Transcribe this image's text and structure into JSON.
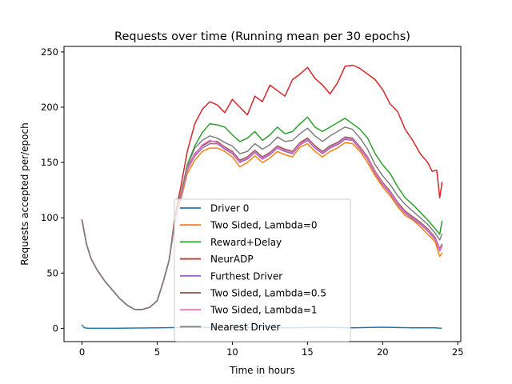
{
  "chart_data": {
    "type": "line",
    "title": "Requests over time (Running mean per 30 epochs)",
    "xlabel": "Time in hours",
    "ylabel": "Requests accepted per/epoch",
    "xlim": [
      -1.2,
      25.2
    ],
    "ylim": [
      -12,
      255
    ],
    "xticks": [
      0,
      5,
      10,
      15,
      20,
      25
    ],
    "yticks": [
      0,
      50,
      100,
      150,
      200,
      250
    ],
    "grid": false,
    "legend_position": "lower-center",
    "shared_early": {
      "x": [
        0,
        0.3,
        0.6,
        1.0,
        1.5,
        2.0,
        2.5,
        3.0,
        3.5,
        4.0,
        4.5,
        5.0,
        5.4,
        5.8
      ],
      "y": [
        98,
        76,
        63,
        53,
        43,
        35,
        27,
        21,
        17,
        17,
        19,
        25,
        42,
        62
      ]
    },
    "series": [
      {
        "name": "Driver 0",
        "color": "#1f77b4",
        "x": [
          0,
          0.15,
          0.5,
          2,
          5,
          8,
          10,
          12,
          14,
          16,
          18,
          20,
          22,
          23.5,
          23.9
        ],
        "y": [
          3,
          0.5,
          0,
          0,
          0.5,
          1,
          0.5,
          1,
          0.5,
          1,
          0.5,
          1,
          0.5,
          0.5,
          0
        ]
      },
      {
        "name": "Two Sided, Lambda=0",
        "color": "#ff7f0e",
        "x": [
          5.8,
          6.2,
          6.6,
          7.0,
          7.5,
          8.0,
          8.5,
          9.0,
          9.5,
          10.0,
          10.5,
          11.0,
          11.5,
          12.0,
          12.5,
          13.0,
          13.5,
          14.0,
          14.5,
          15.0,
          15.5,
          16.0,
          16.5,
          17.0,
          17.5,
          18.0,
          18.5,
          19.0,
          19.5,
          20.0,
          20.5,
          21.0,
          21.5,
          22.0,
          22.5,
          23.0,
          23.5,
          23.8,
          23.95
        ],
        "y": [
          62,
          98,
          118,
          140,
          152,
          160,
          163,
          163,
          160,
          155,
          146,
          150,
          156,
          150,
          154,
          160,
          157,
          155,
          164,
          167,
          160,
          155,
          160,
          163,
          168,
          167,
          160,
          150,
          138,
          128,
          120,
          110,
          102,
          98,
          92,
          85,
          78,
          65,
          68
        ]
      },
      {
        "name": "Reward+Delay",
        "color": "#2ca02c",
        "x": [
          5.8,
          6.2,
          6.6,
          7.0,
          7.5,
          8.0,
          8.5,
          9.0,
          9.5,
          10.0,
          10.5,
          11.0,
          11.5,
          12.0,
          12.5,
          13.0,
          13.5,
          14.0,
          14.5,
          15.0,
          15.5,
          16.0,
          16.5,
          17.0,
          17.5,
          18.0,
          18.5,
          19.0,
          19.5,
          20.0,
          20.5,
          21.0,
          21.5,
          22.0,
          22.5,
          23.0,
          23.5,
          23.8,
          23.95
        ],
        "y": [
          62,
          100,
          122,
          148,
          165,
          177,
          185,
          184,
          182,
          175,
          169,
          172,
          178,
          170,
          175,
          182,
          176,
          178,
          185,
          191,
          182,
          178,
          182,
          186,
          190,
          185,
          180,
          172,
          158,
          148,
          140,
          128,
          118,
          112,
          105,
          98,
          90,
          85,
          97
        ]
      },
      {
        "name": "NeurADP",
        "color": "#d62728",
        "x": [
          5.8,
          6.2,
          6.6,
          7.0,
          7.5,
          8.0,
          8.5,
          9.0,
          9.5,
          10.0,
          10.5,
          11.0,
          11.5,
          12.0,
          12.5,
          13.0,
          13.5,
          14.0,
          14.5,
          15.0,
          15.5,
          16.0,
          16.5,
          17.0,
          17.5,
          18.0,
          18.5,
          19.0,
          19.5,
          20.0,
          20.5,
          21.0,
          21.5,
          22.0,
          22.5,
          23.0,
          23.3,
          23.6,
          23.8,
          23.95
        ],
        "y": [
          62,
          103,
          130,
          160,
          185,
          198,
          205,
          202,
          195,
          207,
          200,
          193,
          210,
          205,
          220,
          215,
          210,
          225,
          230,
          236,
          226,
          220,
          212,
          222,
          237,
          238,
          235,
          230,
          225,
          216,
          203,
          196,
          180,
          170,
          158,
          150,
          142,
          143,
          118,
          132
        ]
      },
      {
        "name": "Furthest Driver",
        "color": "#9467bd",
        "x": [
          5.8,
          6.2,
          6.6,
          7.0,
          7.5,
          8.0,
          8.5,
          9.0,
          9.5,
          10.0,
          10.5,
          11.0,
          11.5,
          12.0,
          12.5,
          13.0,
          13.5,
          14.0,
          14.5,
          15.0,
          15.5,
          16.0,
          16.5,
          17.0,
          17.5,
          18.0,
          18.5,
          19.0,
          19.5,
          20.0,
          20.5,
          21.0,
          21.5,
          22.0,
          22.5,
          23.0,
          23.5,
          23.8,
          23.95
        ],
        "y": [
          62,
          99,
          120,
          143,
          156,
          163,
          167,
          167,
          162,
          158,
          150,
          153,
          159,
          153,
          157,
          163,
          160,
          158,
          166,
          170,
          163,
          158,
          163,
          166,
          171,
          170,
          162,
          153,
          140,
          130,
          122,
          112,
          104,
          99,
          94,
          88,
          80,
          70,
          74
        ]
      },
      {
        "name": "Two Sided, Lambda=0.5",
        "color": "#8c564b",
        "x": [
          5.8,
          6.2,
          6.6,
          7.0,
          7.5,
          8.0,
          8.5,
          9.0,
          9.5,
          10.0,
          10.5,
          11.0,
          11.5,
          12.0,
          12.5,
          13.0,
          13.5,
          14.0,
          14.5,
          15.0,
          15.5,
          16.0,
          16.5,
          17.0,
          17.5,
          18.0,
          18.5,
          19.0,
          19.5,
          20.0,
          20.5,
          21.0,
          21.5,
          22.0,
          22.5,
          23.0,
          23.5,
          23.8,
          23.95
        ],
        "y": [
          62,
          99,
          121,
          145,
          158,
          165,
          169,
          169,
          164,
          160,
          152,
          155,
          161,
          155,
          159,
          165,
          162,
          160,
          168,
          172,
          165,
          160,
          165,
          168,
          173,
          172,
          164,
          155,
          142,
          132,
          124,
          114,
          106,
          101,
          96,
          90,
          82,
          72,
          76
        ]
      },
      {
        "name": "Two Sided, Lambda=1",
        "color": "#e377c2",
        "x": [
          5.8,
          6.2,
          6.6,
          7.0,
          7.5,
          8.0,
          8.5,
          9.0,
          9.5,
          10.0,
          10.5,
          11.0,
          11.5,
          12.0,
          12.5,
          13.0,
          13.5,
          14.0,
          14.5,
          15.0,
          15.5,
          16.0,
          16.5,
          17.0,
          17.5,
          18.0,
          18.5,
          19.0,
          19.5,
          20.0,
          20.5,
          21.0,
          21.5,
          22.0,
          22.5,
          23.0,
          23.5,
          23.8,
          23.95
        ],
        "y": [
          62,
          99,
          121,
          144,
          157,
          166,
          170,
          168,
          163,
          159,
          151,
          154,
          160,
          154,
          158,
          164,
          161,
          159,
          167,
          171,
          164,
          159,
          164,
          167,
          172,
          171,
          163,
          154,
          141,
          131,
          123,
          113,
          105,
          100,
          95,
          89,
          81,
          71,
          75
        ]
      },
      {
        "name": "Nearest Driver",
        "color": "#7f7f7f",
        "x": [
          5.8,
          6.2,
          6.6,
          7.0,
          7.5,
          8.0,
          8.5,
          9.0,
          9.5,
          10.0,
          10.5,
          11.0,
          11.5,
          12.0,
          12.5,
          13.0,
          13.5,
          14.0,
          14.5,
          15.0,
          15.5,
          16.0,
          16.5,
          17.0,
          17.5,
          18.0,
          18.5,
          19.0,
          19.5,
          20.0,
          20.5,
          21.0,
          21.5,
          22.0,
          22.5,
          23.0,
          23.5,
          23.8,
          23.95
        ],
        "y": [
          62,
          100,
          123,
          147,
          163,
          170,
          174,
          172,
          168,
          165,
          158,
          160,
          167,
          162,
          166,
          173,
          169,
          170,
          176,
          181,
          174,
          169,
          174,
          178,
          182,
          180,
          172,
          162,
          148,
          138,
          130,
          120,
          112,
          106,
          100,
          94,
          86,
          80,
          85
        ]
      }
    ]
  }
}
